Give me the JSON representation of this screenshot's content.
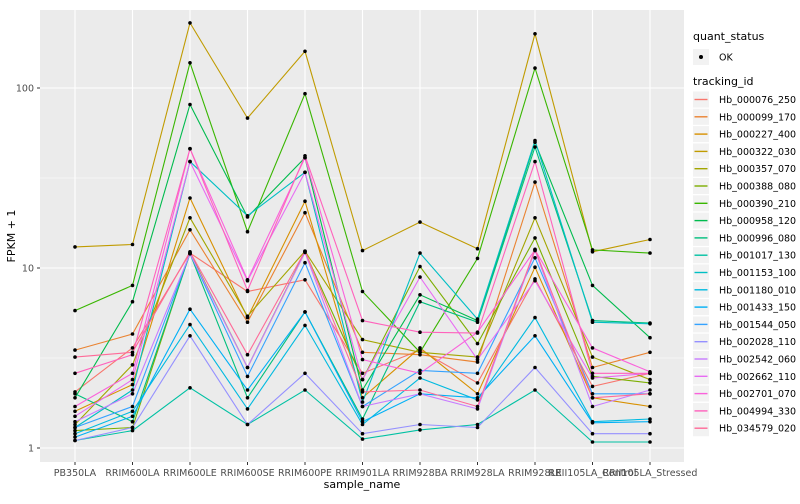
{
  "figure": {
    "background": "#FFFFFF",
    "panel_bg": "#EBEBEB",
    "grid_color": "#FFFFFF",
    "tick_label_color": "#4D4D4D",
    "text_color": "#000000",
    "legend_key_bg": "#F2F2F2",
    "point_color": "#000000"
  },
  "chart_data": {
    "type": "line",
    "title": "",
    "xlabel": "sample_name",
    "ylabel": "FPKM + 1",
    "y_scale": "log10",
    "y_tick_labels": [
      "1",
      "10",
      "100"
    ],
    "y_tick_values": [
      1,
      10,
      100
    ],
    "y_minor_values": [
      3.1623,
      31.623
    ],
    "ylim": [
      0.84,
      271
    ],
    "grid": true,
    "legend_position": "right",
    "categories": [
      "PB350LA",
      "RRIM600LA",
      "RRIM600LE",
      "RRIM600SE",
      "RRIM600PE",
      "RRIM901LA",
      "RRIM928BA",
      "RRIM928LA",
      "RRIM928LE",
      "RRII105LA_Control",
      "RRII105LA_Stressed"
    ],
    "legend": {
      "quant_status_title": "quant_status",
      "quant_status_items": [
        "OK"
      ],
      "tracking_id_title": "tracking_id"
    },
    "series": [
      {
        "name": "Hb_000076_250",
        "color": "#F8766D",
        "values": [
          2.05,
          3.6,
          12.1,
          7.4,
          8.6,
          2.6,
          3.5,
          2.3,
          8.7,
          2.2,
          2.6
        ]
      },
      {
        "name": "Hb_000099_170",
        "color": "#EA8331",
        "values": [
          3.5,
          4.3,
          16.3,
          5.0,
          20.3,
          3.4,
          3.3,
          3.0,
          30,
          2.8,
          3.4
        ]
      },
      {
        "name": "Hb_000227_400",
        "color": "#D89000",
        "values": [
          1.6,
          2.25,
          24.5,
          5.3,
          23.5,
          1.9,
          3.6,
          2.0,
          10.1,
          1.9,
          1.7
        ]
      },
      {
        "name": "Hb_000322_030",
        "color": "#C09B00",
        "values": [
          13.1,
          13.5,
          230,
          68,
          160,
          12.5,
          18,
          12.8,
          200,
          12.3,
          14.4
        ]
      },
      {
        "name": "Hb_000357_070",
        "color": "#A3A500",
        "values": [
          1.35,
          2.9,
          19,
          5.4,
          12.4,
          4.0,
          3.4,
          3.2,
          19,
          3.2,
          2.4
        ]
      },
      {
        "name": "Hb_000388_080",
        "color": "#7CAE00",
        "values": [
          1.25,
          1.3,
          12.2,
          2.8,
          12.3,
          2.4,
          10.2,
          3.8,
          14.7,
          2.5,
          2.3
        ]
      },
      {
        "name": "Hb_000390_210",
        "color": "#39B600",
        "values": [
          5.8,
          8.0,
          138,
          15.9,
          93,
          7.4,
          3.4,
          11.3,
          129,
          12.6,
          12.1
        ]
      },
      {
        "name": "Hb_000958_120",
        "color": "#00BB4E",
        "values": [
          1.9,
          6.5,
          81,
          19.2,
          41,
          2.1,
          7.1,
          5.1,
          50,
          8.0,
          4.1
        ]
      },
      {
        "name": "Hb_000996_080",
        "color": "#00BF7D",
        "values": [
          2.0,
          1.4,
          12.0,
          1.9,
          5.7,
          1.45,
          6.5,
          5.0,
          47,
          5.1,
          4.95
        ]
      },
      {
        "name": "Hb_001017_130",
        "color": "#00C1A3",
        "values": [
          1.1,
          1.25,
          2.16,
          1.35,
          2.1,
          1.12,
          1.26,
          1.35,
          2.1,
          1.08,
          1.08
        ]
      },
      {
        "name": "Hb_001153_100",
        "color": "#00BFC4",
        "values": [
          1.3,
          2.1,
          39,
          19.5,
          34,
          1.8,
          12.1,
          5.2,
          51,
          5.0,
          4.9
        ]
      },
      {
        "name": "Hb_001180_010",
        "color": "#00BAE0",
        "values": [
          1.2,
          1.6,
          4.85,
          1.65,
          4.8,
          1.35,
          2.45,
          1.85,
          5.3,
          1.4,
          1.45
        ]
      },
      {
        "name": "Hb_001433_150",
        "color": "#00B0F6",
        "values": [
          1.15,
          1.5,
          5.9,
          2.1,
          5.7,
          1.4,
          2.0,
          1.9,
          4.2,
          1.38,
          1.4
        ]
      },
      {
        "name": "Hb_001544_050",
        "color": "#35A2FF",
        "values": [
          1.3,
          1.7,
          12.0,
          2.5,
          10.7,
          1.7,
          2.7,
          2.6,
          11.4,
          2.0,
          2.0
        ]
      },
      {
        "name": "Hb_002028_110",
        "color": "#9590FF",
        "values": [
          1.1,
          1.3,
          4.2,
          1.35,
          2.6,
          1.2,
          1.35,
          1.3,
          2.8,
          1.2,
          1.2
        ]
      },
      {
        "name": "Hb_002542_060",
        "color": "#C77CFF",
        "values": [
          1.4,
          2.0,
          12.0,
          2.8,
          12.2,
          1.7,
          2.0,
          1.65,
          12.5,
          1.7,
          2.1
        ]
      },
      {
        "name": "Hb_002662_110",
        "color": "#E76BF3",
        "values": [
          1.5,
          2.4,
          39,
          8.5,
          34,
          2.4,
          8.9,
          3.1,
          8.5,
          2.45,
          2.6
        ]
      },
      {
        "name": "Hb_002701_070",
        "color": "#FA62DB",
        "values": [
          1.7,
          2.6,
          46,
          8.6,
          41,
          3.1,
          2.6,
          4.4,
          12.6,
          3.6,
          2.65
        ]
      },
      {
        "name": "Hb_004994_330",
        "color": "#FF62BC",
        "values": [
          2.6,
          3.3,
          46,
          7.5,
          42,
          5.1,
          4.4,
          4.35,
          39,
          2.6,
          2.6
        ]
      },
      {
        "name": "Hb_034579_020",
        "color": "#FF6A98",
        "values": [
          3.2,
          3.4,
          12.3,
          3.3,
          12.4,
          2.05,
          2.1,
          1.7,
          12.7,
          1.9,
          2.0
        ]
      }
    ]
  }
}
